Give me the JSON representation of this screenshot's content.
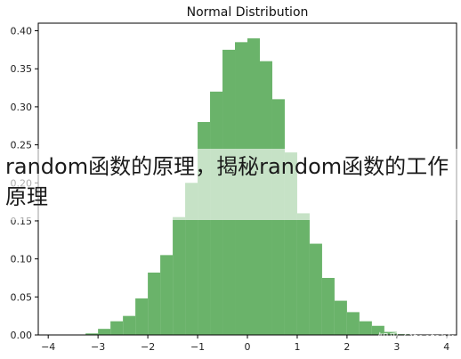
{
  "chart_data": {
    "type": "bar",
    "title": "Normal Distribution",
    "xlabel": "",
    "ylabel": "",
    "xlim": [
      -4.2,
      4.2
    ],
    "ylim": [
      0,
      0.41
    ],
    "xticks": [
      "−4",
      "−3",
      "−2",
      "−1",
      "0",
      "1",
      "2",
      "3",
      "4"
    ],
    "yticks": [
      "0.00",
      "0.05",
      "0.10",
      "0.15",
      "0.20",
      "0.25",
      "0.30",
      "0.35",
      "0.40"
    ],
    "bin_width": 0.25,
    "bins_start": [
      -3.25,
      -3.0,
      -2.75,
      -2.5,
      -2.25,
      -2.0,
      -1.75,
      -1.5,
      -1.25,
      -1.0,
      -0.75,
      -0.5,
      -0.25,
      0.0,
      0.25,
      0.5,
      0.75,
      1.0,
      1.25,
      1.5,
      1.75,
      2.0,
      2.25,
      2.5,
      2.75,
      3.0
    ],
    "values": [
      0.002,
      0.008,
      0.018,
      0.025,
      0.048,
      0.082,
      0.105,
      0.155,
      0.2,
      0.28,
      0.32,
      0.375,
      0.385,
      0.39,
      0.36,
      0.31,
      0.24,
      0.16,
      0.12,
      0.075,
      0.045,
      0.03,
      0.018,
      0.012,
      0.004,
      0.001
    ],
    "grid": false,
    "color": "#6ab36a"
  },
  "overlay": {
    "text": "random函数的原理，揭秘random函数的工作原理"
  },
  "watermark": {
    "text": "知乎 @toofabk"
  }
}
